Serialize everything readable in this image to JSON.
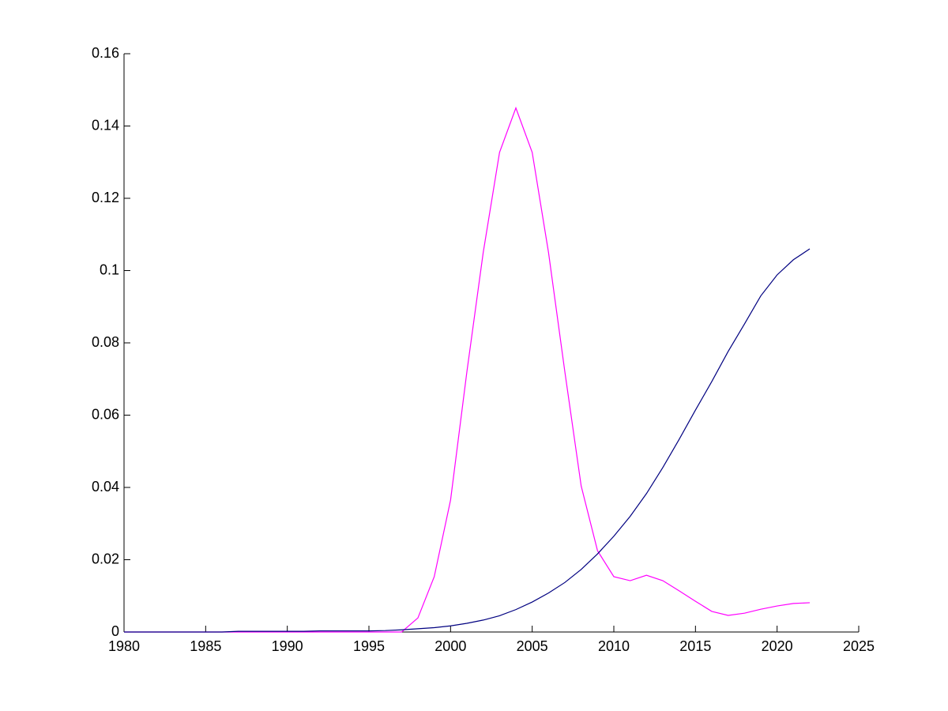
{
  "chart_data": {
    "type": "line",
    "x": [
      1980,
      1981,
      1982,
      1983,
      1984,
      1985,
      1986,
      1987,
      1988,
      1989,
      1990,
      1991,
      1992,
      1993,
      1994,
      1995,
      1996,
      1997,
      1998,
      1999,
      2000,
      2001,
      2002,
      2003,
      2004,
      2005,
      2006,
      2007,
      2008,
      2009,
      2010,
      2011,
      2012,
      2013,
      2014,
      2015,
      2016,
      2017,
      2018,
      2019,
      2020,
      2021,
      2022
    ],
    "series": [
      {
        "color": "#ff00ff",
        "values": [
          0,
          0,
          0,
          0,
          0,
          0,
          0,
          0,
          0,
          0,
          0,
          0,
          0,
          0,
          0,
          0,
          0,
          0,
          0.0039,
          0.0153,
          0.0365,
          0.072,
          0.105,
          0.1327,
          0.145,
          0.1327,
          0.105,
          0.072,
          0.0404,
          0.0225,
          0.0153,
          0.0142,
          0.0157,
          0.0142,
          0.0114,
          0.0085,
          0.0057,
          0.0046,
          0.0052,
          0.0063,
          0.0072,
          0.0079,
          0.0081
        ]
      },
      {
        "color": "#000080",
        "values": [
          0,
          0,
          0,
          0,
          0,
          0,
          0,
          0.0002,
          0.0002,
          0.0002,
          0.0002,
          0.0002,
          0.0003,
          0.0003,
          0.0003,
          0.0003,
          0.0004,
          0.0006,
          0.0009,
          0.0012,
          0.0017,
          0.0024,
          0.0033,
          0.0045,
          0.0062,
          0.0083,
          0.0108,
          0.0137,
          0.0173,
          0.0216,
          0.0265,
          0.032,
          0.0383,
          0.0455,
          0.0533,
          0.0614,
          0.0693,
          0.0776,
          0.0852,
          0.093,
          0.0988,
          0.103,
          0.106
        ]
      }
    ],
    "xlim": [
      1980,
      2025
    ],
    "xticks": [
      1980,
      1985,
      1990,
      1995,
      2000,
      2005,
      2010,
      2015,
      2020,
      2025
    ],
    "ylim": [
      0,
      0.16
    ],
    "yticks": [
      0,
      0.02,
      0.04,
      0.06,
      0.08,
      0.1,
      0.12,
      0.14,
      0.16
    ],
    "grid": false
  }
}
